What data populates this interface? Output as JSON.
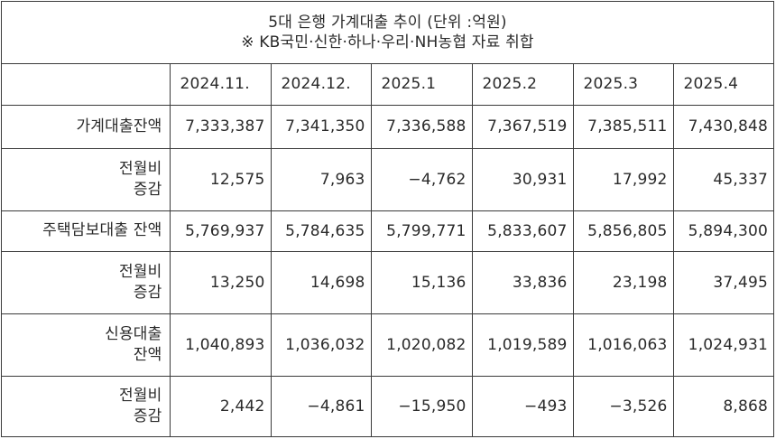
{
  "caption": {
    "title": "5대 은행 가계대출 추이 (단위 :억원)",
    "note": "※ KB국민·신한·하나·우리·NH농협 자료 취합"
  },
  "table": {
    "corner": "",
    "columns": [
      "2024.11.",
      "2024.12.",
      "2025.1",
      "2025.2",
      "2025.3",
      "2025.4"
    ],
    "rows": [
      {
        "label": [
          "가계대출잔액"
        ],
        "values": [
          "7,333,387",
          "7,341,350",
          "7,336,588",
          "7,367,519",
          "7,385,511",
          "7,430,848"
        ]
      },
      {
        "label": [
          "전월비",
          "증감"
        ],
        "values": [
          "12,575",
          "7,963",
          "−4,762",
          "30,931",
          "17,992",
          "45,337"
        ]
      },
      {
        "label": [
          "주택담보대출 잔액"
        ],
        "values": [
          "5,769,937",
          "5,784,635",
          "5,799,771",
          "5,833,607",
          "5,856,805",
          "5,894,300"
        ]
      },
      {
        "label": [
          "전월비",
          "증감"
        ],
        "values": [
          "13,250",
          "14,698",
          "15,136",
          "33,836",
          "23,198",
          "37,495"
        ]
      },
      {
        "label": [
          "신용대출",
          "잔액"
        ],
        "values": [
          "1,040,893",
          "1,036,032",
          "1,020,082",
          "1,019,589",
          "1,016,063",
          "1,024,931"
        ]
      },
      {
        "label": [
          "전월비",
          "증감"
        ],
        "values": [
          "2,442",
          "−4,861",
          "−15,950",
          "−493",
          "−3,526",
          "8,868"
        ]
      }
    ]
  }
}
